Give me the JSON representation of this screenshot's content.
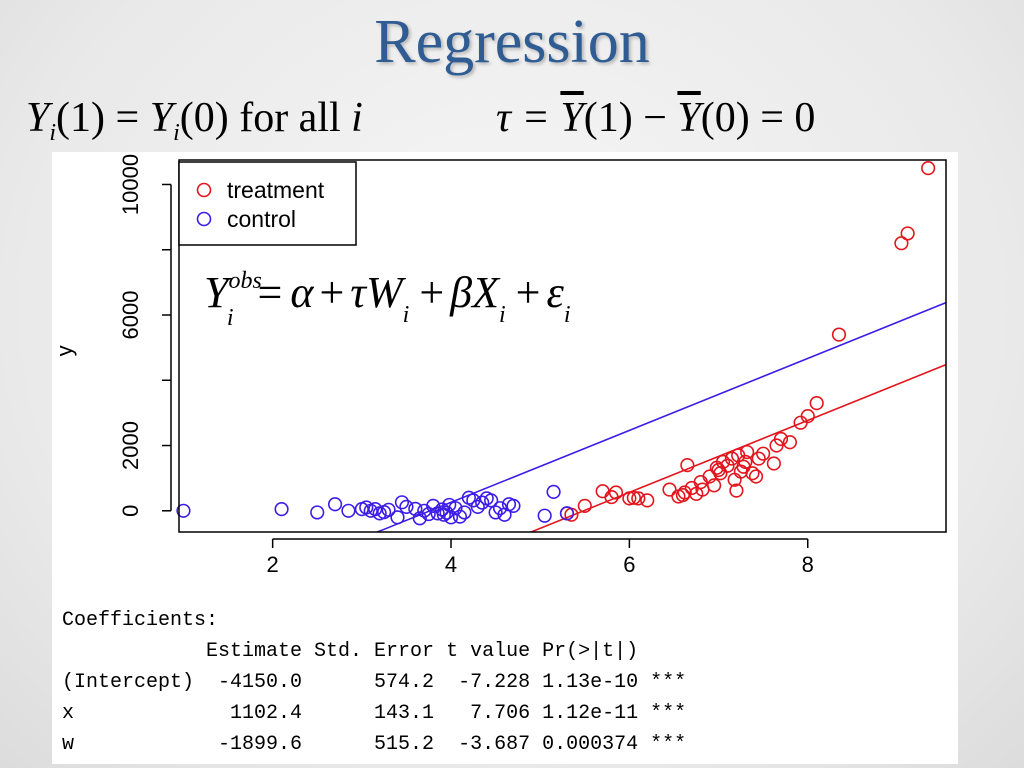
{
  "slide": {
    "title": "Regression",
    "equation_left": {
      "y": "Y",
      "i": "i",
      "one": "(1) = ",
      "y2": "Y",
      "i2": "i",
      "zero": "(0) for all ",
      "iv": "i"
    },
    "equation_right": {
      "tau": "τ = ",
      "y1": "Y",
      "one": "(1) − ",
      "y2": "Y",
      "zero": "(0) = 0"
    }
  },
  "colors": {
    "treatment": "#e3151d",
    "control": "#3e1ce8",
    "title": "#2f5c92"
  },
  "chart_data": {
    "type": "scatter",
    "xlabel": "",
    "ylabel": "y",
    "xlim": [
      0.95,
      9.55
    ],
    "ylim": [
      -650,
      10750
    ],
    "xticks": [
      2,
      4,
      6,
      8
    ],
    "yticks": [
      0,
      2000,
      6000,
      10000
    ],
    "yticks_unlabeled": [
      4000,
      8000
    ],
    "grid": false,
    "legend_position": "top-left",
    "annotation": {
      "Y": "Y",
      "obs": "obs",
      "i": "i",
      "eq": "=",
      "alpha": "α",
      "plus": "+",
      "tauW": "τW",
      "beta": "β",
      "X": "X",
      "eps": "ε"
    },
    "series": [
      {
        "name": "treatment",
        "color": "#e3151d",
        "marker": "open-circle",
        "points": [
          [
            5.35,
            -120
          ],
          [
            5.3,
            -80
          ],
          [
            5.5,
            150
          ],
          [
            5.7,
            600
          ],
          [
            5.8,
            420
          ],
          [
            5.85,
            560
          ],
          [
            6.0,
            380
          ],
          [
            6.05,
            400
          ],
          [
            6.1,
            380
          ],
          [
            6.2,
            320
          ],
          [
            6.45,
            650
          ],
          [
            6.55,
            440
          ],
          [
            6.6,
            480
          ],
          [
            6.62,
            560
          ],
          [
            6.65,
            1400
          ],
          [
            6.7,
            700
          ],
          [
            6.75,
            520
          ],
          [
            6.8,
            880
          ],
          [
            6.82,
            650
          ],
          [
            6.9,
            1050
          ],
          [
            6.95,
            780
          ],
          [
            6.98,
            1320
          ],
          [
            7.0,
            1250
          ],
          [
            7.02,
            1150
          ],
          [
            7.05,
            1500
          ],
          [
            7.1,
            1380
          ],
          [
            7.15,
            1600
          ],
          [
            7.18,
            950
          ],
          [
            7.2,
            620
          ],
          [
            7.22,
            1700
          ],
          [
            7.25,
            1200
          ],
          [
            7.28,
            1350
          ],
          [
            7.3,
            1500
          ],
          [
            7.32,
            1800
          ],
          [
            7.38,
            1150
          ],
          [
            7.42,
            1050
          ],
          [
            7.45,
            1600
          ],
          [
            7.5,
            1750
          ],
          [
            7.62,
            1450
          ],
          [
            7.65,
            2000
          ],
          [
            7.7,
            2200
          ],
          [
            7.8,
            2100
          ],
          [
            7.92,
            2700
          ],
          [
            8.0,
            2900
          ],
          [
            8.1,
            3300
          ],
          [
            8.35,
            5400
          ],
          [
            9.05,
            8200
          ],
          [
            9.12,
            8500
          ],
          [
            9.35,
            10500
          ]
        ]
      },
      {
        "name": "control",
        "color": "#3e1ce8",
        "marker": "open-circle",
        "points": [
          [
            1.0,
            0
          ],
          [
            2.1,
            50
          ],
          [
            2.5,
            -50
          ],
          [
            2.7,
            200
          ],
          [
            2.85,
            0
          ],
          [
            3.0,
            50
          ],
          [
            3.05,
            100
          ],
          [
            3.1,
            0
          ],
          [
            3.15,
            50
          ],
          [
            3.2,
            -80
          ],
          [
            3.25,
            -40
          ],
          [
            3.3,
            30
          ],
          [
            3.4,
            -200
          ],
          [
            3.45,
            260
          ],
          [
            3.5,
            120
          ],
          [
            3.6,
            60
          ],
          [
            3.65,
            -230
          ],
          [
            3.7,
            0
          ],
          [
            3.75,
            -100
          ],
          [
            3.8,
            150
          ],
          [
            3.85,
            -80
          ],
          [
            3.9,
            40
          ],
          [
            3.92,
            -120
          ],
          [
            3.95,
            -60
          ],
          [
            3.98,
            180
          ],
          [
            4.0,
            -200
          ],
          [
            4.05,
            80
          ],
          [
            4.1,
            -180
          ],
          [
            4.15,
            -50
          ],
          [
            4.2,
            400
          ],
          [
            4.25,
            320
          ],
          [
            4.3,
            120
          ],
          [
            4.35,
            250
          ],
          [
            4.4,
            380
          ],
          [
            4.45,
            320
          ],
          [
            4.5,
            -50
          ],
          [
            4.55,
            80
          ],
          [
            4.6,
            -120
          ],
          [
            4.65,
            200
          ],
          [
            4.7,
            150
          ],
          [
            5.05,
            -150
          ],
          [
            5.15,
            580
          ],
          [
            5.3,
            -80
          ]
        ]
      }
    ],
    "fit_lines": [
      {
        "name": "control",
        "color": "#3e1ce8",
        "intercept": -4150.0,
        "slope": 1102.4
      },
      {
        "name": "treatment",
        "color": "#e3151d",
        "intercept": -6049.6,
        "slope": 1102.4
      }
    ]
  },
  "output": {
    "header": "Coefficients:",
    "columns": "            Estimate Std. Error t value Pr(>|t|)    ",
    "rows": [
      "(Intercept)  -4150.0      574.2  -7.228 1.13e-10 ***",
      "x             1102.4      143.1   7.706 1.12e-11 ***",
      "w            -1899.6      515.2  -3.687 0.000374 ***"
    ]
  }
}
